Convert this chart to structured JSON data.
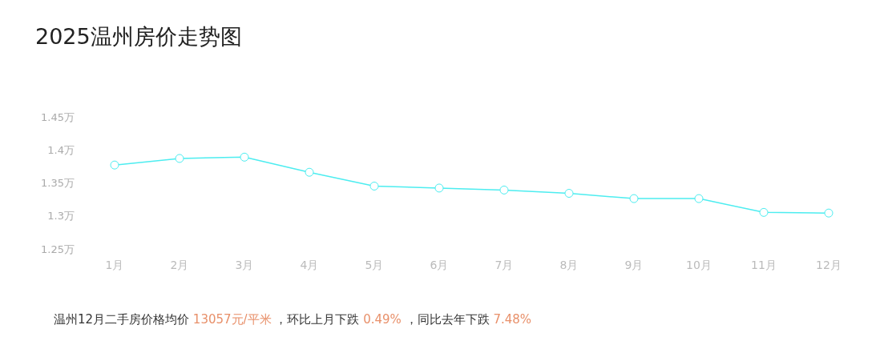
{
  "chart_data": {
    "type": "line",
    "title": "2025温州房价走势图",
    "categories": [
      "1月",
      "2月",
      "3月",
      "4月",
      "5月",
      "6月",
      "7月",
      "8月",
      "9月",
      "10月",
      "11月",
      "12月"
    ],
    "series": [
      {
        "color": "#4dedf0",
        "values": [
          1.379,
          1.389,
          1.391,
          1.368,
          1.347,
          1.344,
          1.341,
          1.336,
          1.328,
          1.328,
          1.307,
          1.306
        ]
      }
    ],
    "ylim": [
      1.25,
      1.45
    ],
    "yticks": [
      {
        "value": 1.25,
        "label": "1.25万"
      },
      {
        "value": 1.3,
        "label": "1.3万"
      },
      {
        "value": 1.35,
        "label": "1.35万"
      },
      {
        "value": 1.4,
        "label": "1.4万"
      },
      {
        "value": 1.45,
        "label": "1.45万"
      }
    ],
    "grid": false,
    "legend": false,
    "marker": "circle",
    "line_style": "solid",
    "annotations": [
      "温州12月二手房价格均价 13057元/平米 ，环比上月下跌 0.49% ，同比去年下跌 7.48%"
    ]
  }
}
